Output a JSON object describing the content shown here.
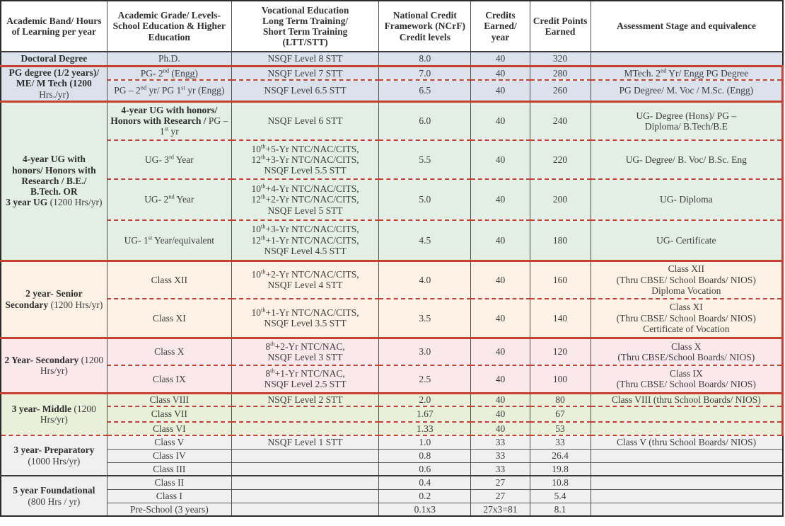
{
  "colors": {
    "accent_red": "#c5402e",
    "band_doctoral_pg": "#dbe2ec",
    "band_ug": "#e3eee4",
    "band_senior_secondary": "#fdf2e5",
    "band_secondary": "#fbe8ed",
    "band_middle": "#e9efd8",
    "band_lower": "#f0f0f0"
  },
  "header": {
    "columns": [
      "Academic Band/ Hours\nof Learning per year",
      "Academic Grade/ Levels-\nSchool Education & Higher\nEducation",
      "Vocational Education\nLong Term Training/\nShort Term Training\n(LTT/STT)",
      "National Credit\nFramework (NCrF)\nCredit levels",
      "Credits\nEarned/\nyear",
      "Credit Points\nEarned",
      "Assessment Stage and equivalence"
    ]
  },
  "bands": [
    {
      "label": "Doctoral Degree",
      "sub": ""
    },
    {
      "label": "PG degree (1/2 years)/\nME/ M Tech (1200",
      "sub": "Hrs./yr)"
    },
    {
      "label": "4-year UG with\nhonors/ Honors with\nResearch / B.E./\nB.Tech. OR\n3 year UG",
      "sub": "(1200 Hrs/yr)"
    },
    {
      "label": "2 year- Senior\nSecondary",
      "sub": "(1200 Hrs/yr)"
    },
    {
      "label": "2 Year- Secondary",
      "sub": "(1200 Hrs/yr)"
    },
    {
      "label": "3 year- Middle",
      "sub": "(1200 Hrs/yr)"
    },
    {
      "label": "3 year- Preparatory",
      "sub": "(1000 Hrs/yr)"
    },
    {
      "label": "5 year Foundational",
      "sub": "(800 Hrs / yr)"
    }
  ],
  "rows": [
    {
      "grade": "Ph.D.",
      "voc": "NSQF Level 8 STT",
      "ncrf": "8.0",
      "credits": "40",
      "points": "320",
      "assess": ""
    },
    {
      "grade": "PG- 2nd (Engg)",
      "voc": "NSQF Level 7 STT",
      "ncrf": "7.0",
      "credits": "40",
      "points": "280",
      "assess": "MTech. 2nd Yr/ Engg PG Degree"
    },
    {
      "grade": "PG – 2nd yr/ PG 1st yr (Engg)",
      "voc": "NSQF Level 6.5 STT",
      "ncrf": "6.5",
      "credits": "40",
      "points": "260",
      "assess": "PG Degree/ M. Voc / M.Sc. (Engg)"
    },
    {
      "grade": "4-year UG with honors/\nHonors with Research /",
      "grade_sub": "PG – 1st yr",
      "voc": "NSQF Level 6 STT",
      "ncrf": "6.0",
      "credits": "40",
      "points": "240",
      "assess": "UG- Degree (Hons)/ PG –\nDiploma/ B.Tech/B.E"
    },
    {
      "grade": "UG- 3rd Year",
      "voc": "10th+5-Yr NTC/NAC/CITS,\n12th+3-Yr NTC/NAC/CITS,\nNSQF Level 5.5 STT",
      "ncrf": "5.5",
      "credits": "40",
      "points": "220",
      "assess": "UG- Degree/ B. Voc/ B.Sc. Eng"
    },
    {
      "grade": "UG- 2nd Year",
      "voc": "10th+4-Yr NTC/NAC/CITS,\n12th+2-Yr NTC/NAC/CITS,\nNSQF Level 5 STT",
      "ncrf": "5.0",
      "credits": "40",
      "points": "200",
      "assess": "UG- Diploma"
    },
    {
      "grade": "UG- 1st Year/equivalent",
      "voc": "10th+3-Yr NTC/NAC/CITS,\n12th+1-Yr NTC/NAC/CITS,\nNSQF Level 4.5 STT",
      "ncrf": "4.5",
      "credits": "40",
      "points": "180",
      "assess": "UG- Certificate"
    },
    {
      "grade": "Class XII",
      "voc": "10th+2-Yr NTC/NAC/CITS,\nNSQF Level 4 STT",
      "ncrf": "4.0",
      "credits": "40",
      "points": "160",
      "assess": "Class XII\n(Thru CBSE/ School Boards/ NIOS)\nDiploma Vocation"
    },
    {
      "grade": "Class XI",
      "voc": "10th+1-Yr NTC/NAC/CITS,\nNSQF Level 3.5 STT",
      "ncrf": "3.5",
      "credits": "40",
      "points": "140",
      "assess": "Class XI\n(Thru CBSE/ School Boards/ NIOS)\nCertificate of Vocation"
    },
    {
      "grade": "Class X",
      "voc": "8th+2-Yr NTC/NAC,\nNSQF Level 3 STT",
      "ncrf": "3.0",
      "credits": "40",
      "points": "120",
      "assess": "Class X\n(Thru CBSE/School Boards/ NIOS)"
    },
    {
      "grade": "Class IX",
      "voc": "8th+1-Yr NTC/NAC,\nNSQF Level 2.5 STT",
      "ncrf": "2.5",
      "credits": "40",
      "points": "100",
      "assess": "Class IX\n(Thru CBSE/ School Boards/ NIOS)"
    },
    {
      "grade": "Class VIII",
      "voc": "NSQF Level 2 STT",
      "ncrf": "2.0",
      "credits": "40",
      "points": "80",
      "assess": "Class VIII (thru School Boards/ NIOS)"
    },
    {
      "grade": "Class VII",
      "voc": "",
      "ncrf": "1.67",
      "credits": "40",
      "points": "67",
      "assess": ""
    },
    {
      "grade": "Class VI",
      "voc": "",
      "ncrf": "1.33",
      "credits": "40",
      "points": "53",
      "assess": ""
    },
    {
      "grade": "Class V",
      "voc": "NSQF Level 1 STT",
      "ncrf": "1.0",
      "credits": "33",
      "points": "33",
      "assess": "Class V (thru School Boards/ NIOS)"
    },
    {
      "grade": "Class IV",
      "voc": "",
      "ncrf": "0.8",
      "credits": "33",
      "points": "26.4",
      "assess": ""
    },
    {
      "grade": "Class III",
      "voc": "",
      "ncrf": "0.6",
      "credits": "33",
      "points": "19.8",
      "assess": ""
    },
    {
      "grade": "Class II",
      "voc": "",
      "ncrf": "0.4",
      "credits": "27",
      "points": "10.8",
      "assess": ""
    },
    {
      "grade": "Class I",
      "voc": "",
      "ncrf": "0.2",
      "credits": "27",
      "points": "5.4",
      "assess": ""
    },
    {
      "grade": "Pre-School (3 years)",
      "voc": "",
      "ncrf": "0.1x3",
      "credits": "27x3=81",
      "points": "8.1",
      "assess": ""
    }
  ]
}
